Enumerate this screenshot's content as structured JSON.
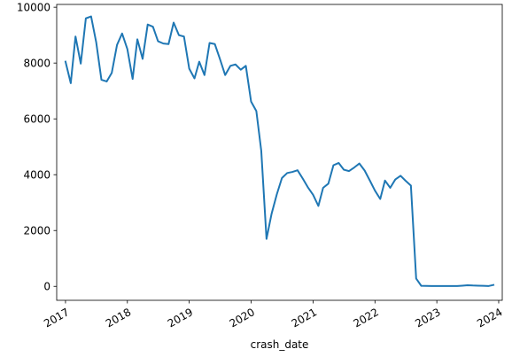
{
  "chart_data": {
    "type": "line",
    "title": "",
    "xlabel": "crash_date",
    "ylabel": "",
    "xlim": [
      "2016-11-10",
      "2024-01-22"
    ],
    "ylim": [
      -500,
      10100
    ],
    "grid": false,
    "legend": "none",
    "line_color": "#1f77b4",
    "x_ticks": [
      "2017",
      "2018",
      "2019",
      "2020",
      "2021",
      "2022",
      "2023",
      "2024"
    ],
    "y_ticks": [
      0,
      2000,
      4000,
      6000,
      8000,
      10000
    ],
    "series": [
      {
        "x": [
          "2017-01",
          "2017-02",
          "2017-03",
          "2017-04",
          "2017-05",
          "2017-06",
          "2017-07",
          "2017-08",
          "2017-09",
          "2017-10",
          "2017-11",
          "2017-12",
          "2018-01",
          "2018-02",
          "2018-03",
          "2018-04",
          "2018-05",
          "2018-06",
          "2018-07",
          "2018-08",
          "2018-09",
          "2018-10",
          "2018-11",
          "2018-12",
          "2019-01",
          "2019-02",
          "2019-03",
          "2019-04",
          "2019-05",
          "2019-06",
          "2019-07",
          "2019-08",
          "2019-09",
          "2019-10",
          "2019-11",
          "2019-12",
          "2020-01",
          "2020-02",
          "2020-03",
          "2020-04",
          "2020-05",
          "2020-06",
          "2020-07",
          "2020-08",
          "2020-09",
          "2020-10",
          "2020-11",
          "2020-12",
          "2021-01",
          "2021-02",
          "2021-03",
          "2021-04",
          "2021-05",
          "2021-06",
          "2021-07",
          "2021-08",
          "2021-09",
          "2021-10",
          "2021-11",
          "2021-12",
          "2022-01",
          "2022-02",
          "2022-03",
          "2022-04",
          "2022-05",
          "2022-06",
          "2022-07",
          "2022-08",
          "2022-09",
          "2022-10",
          "2022-11",
          "2022-12",
          "2023-01",
          "2023-02",
          "2023-03",
          "2023-04",
          "2023-05",
          "2023-06",
          "2023-07",
          "2023-08",
          "2023-09",
          "2023-10",
          "2023-11",
          "2023-12"
        ],
        "y": [
          8050,
          7280,
          8950,
          7980,
          9600,
          9670,
          8750,
          7400,
          7340,
          7650,
          8650,
          9060,
          8500,
          7430,
          8850,
          8150,
          9380,
          9300,
          8780,
          8700,
          8680,
          9450,
          9000,
          8950,
          7800,
          7450,
          8050,
          7570,
          8720,
          8680,
          8150,
          7570,
          7900,
          7950,
          7760,
          7900,
          6620,
          6280,
          4860,
          1700,
          2600,
          3300,
          3880,
          4060,
          4100,
          4160,
          3860,
          3550,
          3280,
          2880,
          3530,
          3680,
          4340,
          4420,
          4180,
          4130,
          4260,
          4400,
          4150,
          3800,
          3430,
          3130,
          3790,
          3530,
          3830,
          3960,
          3780,
          3610,
          280,
          20,
          15,
          10,
          10,
          10,
          10,
          10,
          10,
          25,
          40,
          30,
          25,
          20,
          10,
          50
        ]
      }
    ]
  }
}
